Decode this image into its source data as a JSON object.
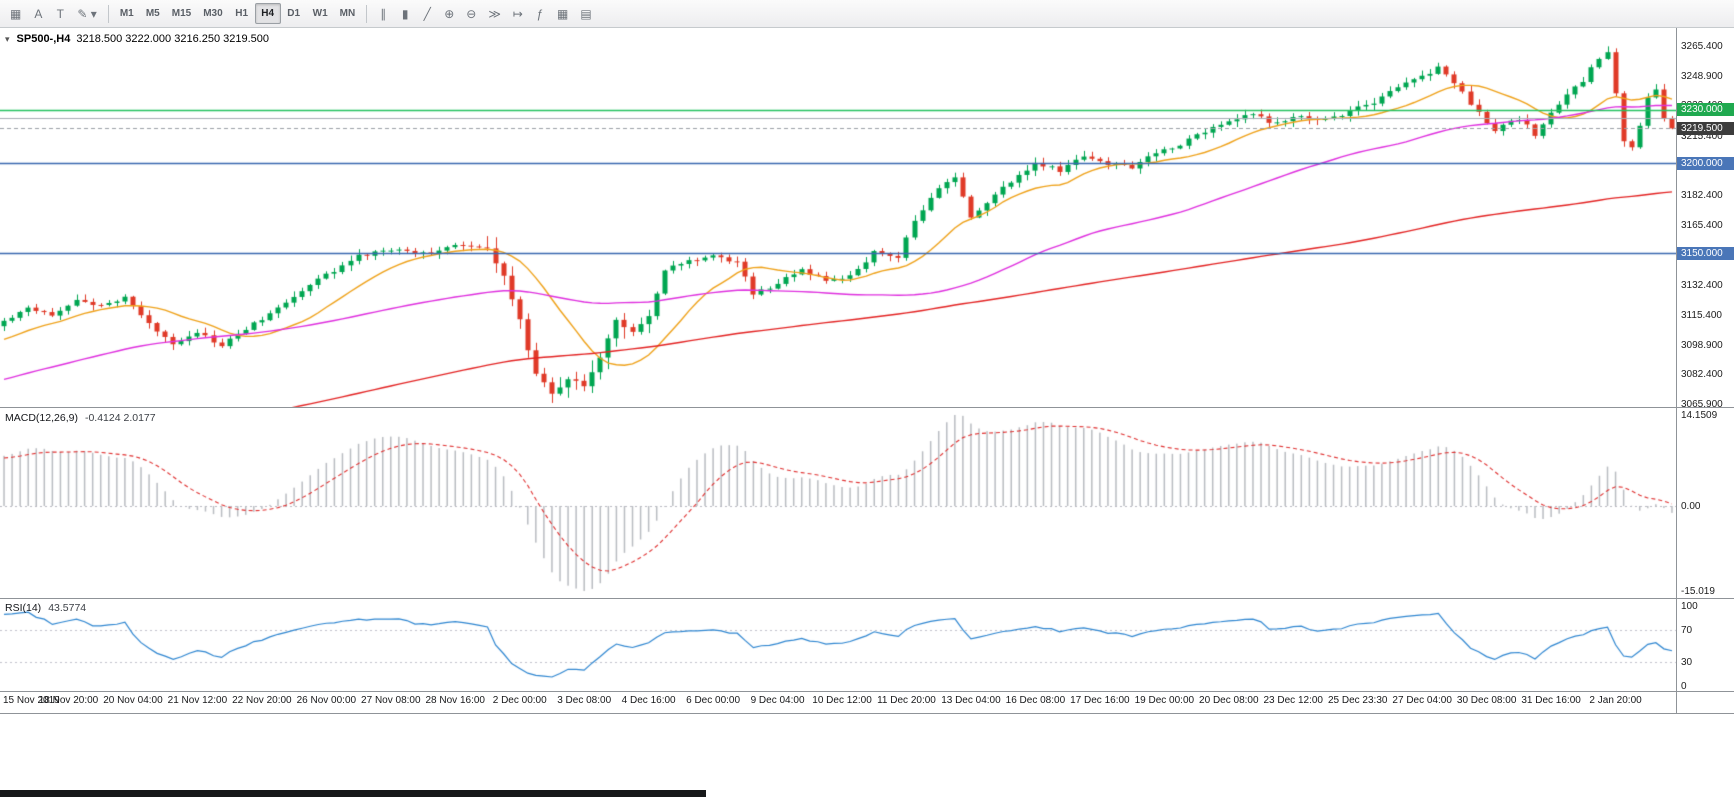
{
  "toolbar": {
    "left_icons": [
      {
        "name": "chart-window-icon",
        "glyph": "▦"
      },
      {
        "name": "annotation-a-icon",
        "glyph": "A"
      },
      {
        "name": "text-label-icon",
        "glyph": "T"
      },
      {
        "name": "draw-tools-icon",
        "glyph": "✎ ▾"
      }
    ],
    "timeframes": [
      "M1",
      "M5",
      "M15",
      "M30",
      "H1",
      "H4",
      "D1",
      "W1",
      "MN"
    ],
    "active_timeframe": "H4",
    "right_icons": [
      {
        "name": "bar-chart-mode-icon",
        "glyph": "∥"
      },
      {
        "name": "candlestick-mode-icon",
        "glyph": "▮"
      },
      {
        "name": "line-chart-mode-icon",
        "glyph": "╱"
      },
      {
        "name": "zoom-in-icon",
        "glyph": "⊕"
      },
      {
        "name": "zoom-out-icon",
        "glyph": "⊖"
      },
      {
        "name": "auto-scroll-icon",
        "glyph": "≫"
      },
      {
        "name": "chart-shift-icon",
        "glyph": "↦"
      },
      {
        "name": "indicators-icon",
        "glyph": "ƒ"
      },
      {
        "name": "periods-icon",
        "glyph": "▦"
      },
      {
        "name": "templates-icon",
        "glyph": "▤"
      }
    ]
  },
  "chart": {
    "symbol_label": "SP500-,H4",
    "ohlc": "3218.500 3222.000 3216.250 3219.500",
    "collapse_glyph": "▾",
    "up_color": "#00a651",
    "down_color": "#e03a28",
    "price_axis": {
      "min": 3065.9,
      "max": 3265.4,
      "ticks": [
        3265.4,
        3248.9,
        3232.4,
        3215.4,
        3198.9,
        3182.4,
        3165.4,
        3148.9,
        3132.4,
        3115.4,
        3098.9,
        3082.4,
        3065.9
      ]
    },
    "lines": [
      {
        "name": "resistance-line-green",
        "price": 3230.0,
        "label": "3230.000",
        "color": "#25c25f",
        "badge_color": "#1fa94f",
        "width": 1.6,
        "badge": true
      },
      {
        "name": "level-line-gray",
        "price": 3225.5,
        "label": "",
        "color": "#a8adb5",
        "badge_color": "",
        "width": 1,
        "badge": false
      },
      {
        "name": "support-line-blue-1",
        "price": 3200.0,
        "label": "3200.000",
        "color": "#3a68b0",
        "badge_color": "#4a76b8",
        "width": 1.4,
        "badge": true
      },
      {
        "name": "support-line-blue-2",
        "price": 3150.0,
        "label": "3150.000",
        "color": "#3a68b0",
        "badge_color": "#4a76b8",
        "width": 1.4,
        "badge": true
      }
    ],
    "current_price": {
      "value": 3219.5,
      "label": "3219.500",
      "badge_color": "#3c3c3c",
      "line_color": "#9aa0a6"
    },
    "moving_averages": [
      {
        "name": "ma-fast-orange",
        "period": 13,
        "color": "#efa21a"
      },
      {
        "name": "ma-medium-magenta",
        "period": 55,
        "color": "#df2fdf"
      },
      {
        "name": "ma-slow-red",
        "period": 150,
        "color": "#e32222"
      }
    ]
  },
  "macd": {
    "title": "MACD(12,26,9)",
    "values": "-0.4124 2.0177",
    "params": {
      "fast": 12,
      "slow": 26,
      "signal": 9
    },
    "histogram_color": "#babdc2",
    "signal_color": "#e03030",
    "ticks": [
      {
        "value": 14.1509,
        "label": "14.1509"
      },
      {
        "value": 0,
        "label": "0.00"
      },
      {
        "value": -15.019,
        "label": "-15.019"
      }
    ]
  },
  "rsi": {
    "title": "RSI(14)",
    "value": "43.5774",
    "period": 14,
    "line_color": "#2e86d1",
    "levels": [
      70,
      30
    ],
    "ticks": [
      {
        "value": 100,
        "label": "100"
      },
      {
        "value": 70,
        "label": "70"
      },
      {
        "value": 30,
        "label": "30"
      },
      {
        "value": 0,
        "label": "0"
      }
    ]
  },
  "chart_data": {
    "type": "candlestick",
    "symbol": "SP500-",
    "timeframe": "H4",
    "last_candle": {
      "open": 3218.5,
      "high": 3222.0,
      "low": 3216.25,
      "close": 3219.5
    },
    "candle_count": 208,
    "close_keyframes": [
      [
        0,
        3112
      ],
      [
        3,
        3120
      ],
      [
        6,
        3116
      ],
      [
        9,
        3124
      ],
      [
        12,
        3120
      ],
      [
        15,
        3126
      ],
      [
        18,
        3110
      ],
      [
        21,
        3100
      ],
      [
        24,
        3106
      ],
      [
        27,
        3098
      ],
      [
        30,
        3108
      ],
      [
        33,
        3116
      ],
      [
        36,
        3126
      ],
      [
        40,
        3138
      ],
      [
        44,
        3148
      ],
      [
        48,
        3152
      ],
      [
        52,
        3150
      ],
      [
        56,
        3154
      ],
      [
        60,
        3152
      ],
      [
        62,
        3138
      ],
      [
        64,
        3112
      ],
      [
        66,
        3082
      ],
      [
        68,
        3072
      ],
      [
        70,
        3080
      ],
      [
        72,
        3077
      ],
      [
        74,
        3092
      ],
      [
        76,
        3112
      ],
      [
        78,
        3107
      ],
      [
        80,
        3114
      ],
      [
        82,
        3140
      ],
      [
        85,
        3146
      ],
      [
        88,
        3148
      ],
      [
        91,
        3145
      ],
      [
        93,
        3127
      ],
      [
        96,
        3133
      ],
      [
        99,
        3141
      ],
      [
        102,
        3134
      ],
      [
        105,
        3137
      ],
      [
        108,
        3150
      ],
      [
        111,
        3148
      ],
      [
        113,
        3168
      ],
      [
        116,
        3186
      ],
      [
        118,
        3192
      ],
      [
        120,
        3170
      ],
      [
        122,
        3178
      ],
      [
        125,
        3190
      ],
      [
        128,
        3200
      ],
      [
        131,
        3196
      ],
      [
        134,
        3204
      ],
      [
        137,
        3200
      ],
      [
        140,
        3198
      ],
      [
        143,
        3206
      ],
      [
        146,
        3211
      ],
      [
        149,
        3218
      ],
      [
        152,
        3224
      ],
      [
        155,
        3227
      ],
      [
        158,
        3222
      ],
      [
        161,
        3226
      ],
      [
        164,
        3224
      ],
      [
        167,
        3229
      ],
      [
        170,
        3234
      ],
      [
        173,
        3243
      ],
      [
        176,
        3249
      ],
      [
        178,
        3253
      ],
      [
        180,
        3245
      ],
      [
        183,
        3228
      ],
      [
        185,
        3218
      ],
      [
        188,
        3225
      ],
      [
        190,
        3216
      ],
      [
        192,
        3228
      ],
      [
        194,
        3238
      ],
      [
        196,
        3246
      ],
      [
        198,
        3259
      ],
      [
        199,
        3263
      ],
      [
        200,
        3240
      ],
      [
        201,
        3212
      ],
      [
        202,
        3208
      ],
      [
        203,
        3221
      ],
      [
        204,
        3236
      ],
      [
        205,
        3241
      ],
      [
        206,
        3226
      ],
      [
        207,
        3219.5
      ]
    ],
    "x_labels": [
      "15 Nov 2019",
      "18 Nov 20:00",
      "20 Nov 04:00",
      "21 Nov 12:00",
      "22 Nov 20:00",
      "26 Nov 00:00",
      "27 Nov 08:00",
      "28 Nov 16:00",
      "2 Dec 00:00",
      "3 Dec 08:00",
      "4 Dec 16:00",
      "6 Dec 00:00",
      "9 Dec 04:00",
      "10 Dec 12:00",
      "11 Dec 20:00",
      "13 Dec 04:00",
      "16 Dec 08:00",
      "17 Dec 16:00",
      "19 Dec 00:00",
      "20 Dec 08:00",
      "23 Dec 12:00",
      "25 Dec 23:30",
      "27 Dec 04:00",
      "30 Dec 08:00",
      "31 Dec 16:00",
      "2 Jan 20:00"
    ]
  }
}
